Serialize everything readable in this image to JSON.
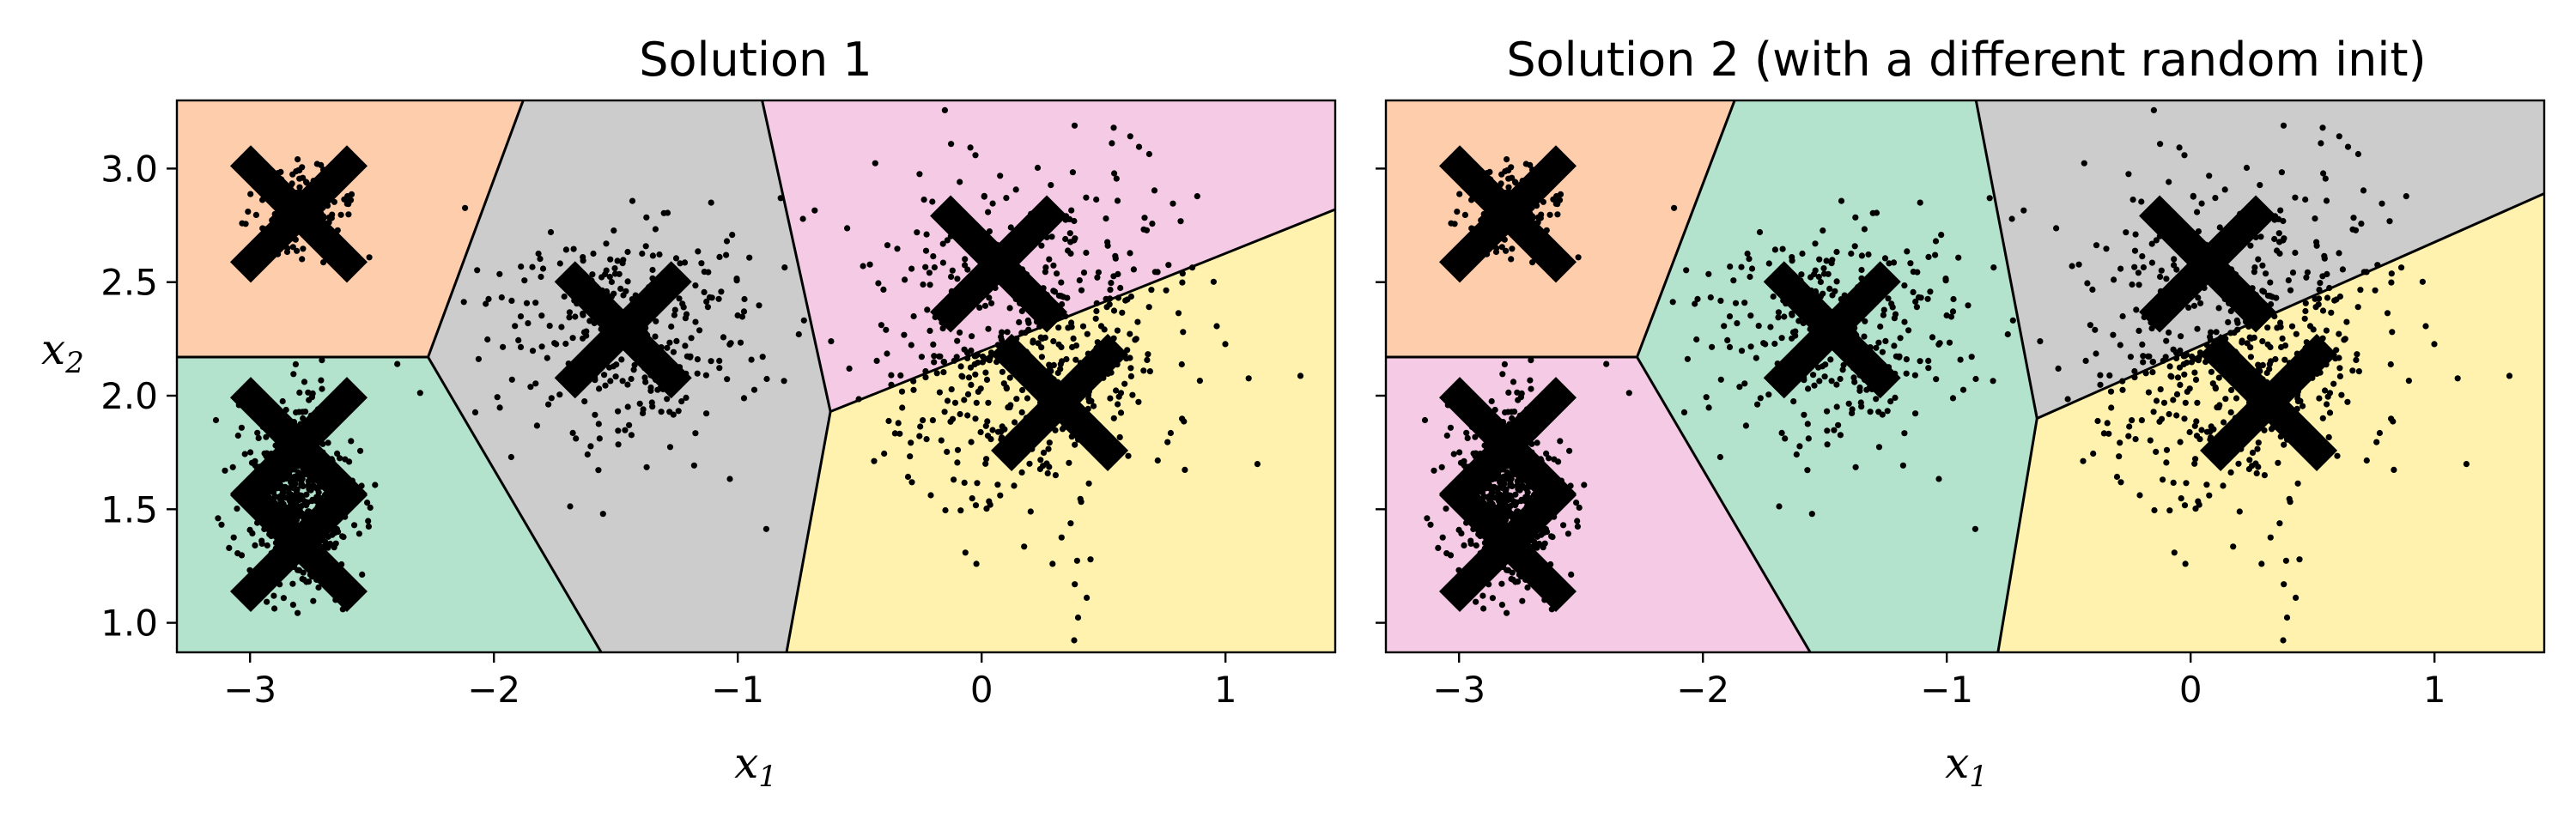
{
  "colors": {
    "region_orange": "#fdcdac",
    "region_green": "#b3e2cd",
    "region_gray": "#cccccc",
    "region_pink": "#f4cae4",
    "region_yellow": "#fff2ae",
    "points": "#000000",
    "centroid": "#000000",
    "boundary": "#000000"
  },
  "chart_data": [
    {
      "type": "scatter",
      "title": "Solution 1",
      "xlabel": "x1",
      "ylabel": "x2",
      "xlim": [
        -3.3,
        1.45
      ],
      "ylim": [
        0.87,
        3.3
      ],
      "x_ticks": [
        -3,
        -2,
        -1,
        0,
        1
      ],
      "x_tick_labels": [
        "−3",
        "−2",
        "−1",
        "0",
        "1"
      ],
      "y_ticks": [
        1.0,
        1.5,
        2.0,
        2.5,
        3.0
      ],
      "y_tick_labels": [
        "1.0",
        "1.5",
        "2.0",
        "2.5",
        "3.0"
      ],
      "grid": false,
      "centroids": [
        {
          "x": -2.8,
          "y": 2.8
        },
        {
          "x": -2.8,
          "y": 1.78
        },
        {
          "x": -2.8,
          "y": 1.35
        },
        {
          "x": -1.47,
          "y": 2.29
        },
        {
          "x": 0.07,
          "y": 2.58
        },
        {
          "x": 0.32,
          "y": 1.97
        }
      ],
      "clusters": [
        {
          "name": "top-left blob",
          "cx": -2.8,
          "cy": 2.8,
          "sx": 0.1,
          "sy": 0.1,
          "n": 180
        },
        {
          "name": "bottom-left blob",
          "cx": -2.8,
          "cy": 1.55,
          "sx": 0.11,
          "sy": 0.2,
          "n": 550
        },
        {
          "name": "center blob",
          "cx": -1.47,
          "cy": 2.29,
          "sx": 0.29,
          "sy": 0.29,
          "n": 320
        },
        {
          "name": "right blob",
          "cx": 0.2,
          "cy": 2.25,
          "sx": 0.32,
          "sy": 0.38,
          "n": 560
        }
      ],
      "regions": [
        {
          "color": "region_orange",
          "polygon": [
            [
              -3.3,
              3.3
            ],
            [
              -1.88,
              3.3
            ],
            [
              -2.27,
              2.17
            ],
            [
              -3.3,
              2.17
            ]
          ]
        },
        {
          "color": "region_green",
          "polygon": [
            [
              -3.3,
              2.17
            ],
            [
              -2.27,
              2.17
            ],
            [
              -1.56,
              0.87
            ],
            [
              -3.3,
              0.87
            ]
          ]
        },
        {
          "color": "region_gray",
          "polygon": [
            [
              -1.88,
              3.3
            ],
            [
              -0.9,
              3.3
            ],
            [
              -0.62,
              1.93
            ],
            [
              -0.8,
              0.87
            ],
            [
              -1.56,
              0.87
            ],
            [
              -2.27,
              2.17
            ]
          ]
        },
        {
          "color": "region_pink",
          "polygon": [
            [
              -0.9,
              3.3
            ],
            [
              1.45,
              3.3
            ],
            [
              1.45,
              2.82
            ],
            [
              -0.62,
              1.93
            ]
          ]
        },
        {
          "color": "region_yellow",
          "polygon": [
            [
              -0.62,
              1.93
            ],
            [
              1.45,
              2.82
            ],
            [
              1.45,
              0.87
            ],
            [
              -0.8,
              0.87
            ]
          ]
        }
      ],
      "boundaries": [
        [
          [
            -1.88,
            3.3
          ],
          [
            -2.27,
            2.17
          ]
        ],
        [
          [
            -3.3,
            2.17
          ],
          [
            -2.27,
            2.17
          ]
        ],
        [
          [
            -2.27,
            2.17
          ],
          [
            -1.56,
            0.87
          ]
        ],
        [
          [
            -0.9,
            3.3
          ],
          [
            -0.62,
            1.93
          ]
        ],
        [
          [
            -0.62,
            1.93
          ],
          [
            -0.8,
            0.87
          ]
        ],
        [
          [
            -0.62,
            1.93
          ],
          [
            1.45,
            2.82
          ]
        ]
      ]
    },
    {
      "type": "scatter",
      "title": "Solution 2 (with a different random init)",
      "xlabel": "x1",
      "ylabel": "",
      "xlim": [
        -3.3,
        1.45
      ],
      "ylim": [
        0.87,
        3.3
      ],
      "x_ticks": [
        -3,
        -2,
        -1,
        0,
        1
      ],
      "x_tick_labels": [
        "−3",
        "−2",
        "−1",
        "0",
        "1"
      ],
      "y_ticks": [
        1.0,
        1.5,
        2.0,
        2.5,
        3.0
      ],
      "y_tick_labels": [],
      "grid": false,
      "centroids": [
        {
          "x": -2.8,
          "y": 2.8
        },
        {
          "x": -2.8,
          "y": 1.78
        },
        {
          "x": -2.8,
          "y": 1.35
        },
        {
          "x": -1.47,
          "y": 2.29
        },
        {
          "x": 0.07,
          "y": 2.58
        },
        {
          "x": 0.32,
          "y": 1.97
        }
      ],
      "clusters": [
        {
          "name": "top-left blob",
          "cx": -2.8,
          "cy": 2.8,
          "sx": 0.1,
          "sy": 0.1,
          "n": 180
        },
        {
          "name": "bottom-left blob",
          "cx": -2.8,
          "cy": 1.55,
          "sx": 0.11,
          "sy": 0.2,
          "n": 550
        },
        {
          "name": "center blob",
          "cx": -1.47,
          "cy": 2.29,
          "sx": 0.29,
          "sy": 0.29,
          "n": 320
        },
        {
          "name": "right blob",
          "cx": 0.2,
          "cy": 2.25,
          "sx": 0.32,
          "sy": 0.38,
          "n": 560
        }
      ],
      "regions": [
        {
          "color": "region_orange",
          "polygon": [
            [
              -3.3,
              3.3
            ],
            [
              -1.87,
              3.3
            ],
            [
              -2.27,
              2.17
            ],
            [
              -3.3,
              2.17
            ]
          ]
        },
        {
          "color": "region_pink",
          "polygon": [
            [
              -3.3,
              2.17
            ],
            [
              -2.27,
              2.17
            ],
            [
              -1.56,
              0.87
            ],
            [
              -3.3,
              0.87
            ]
          ]
        },
        {
          "color": "region_green",
          "polygon": [
            [
              -1.87,
              3.3
            ],
            [
              -0.88,
              3.3
            ],
            [
              -0.63,
              1.9
            ],
            [
              -0.79,
              0.87
            ],
            [
              -1.56,
              0.87
            ],
            [
              -2.27,
              2.17
            ]
          ]
        },
        {
          "color": "region_gray",
          "polygon": [
            [
              -0.88,
              3.3
            ],
            [
              1.45,
              3.3
            ],
            [
              1.45,
              2.89
            ],
            [
              -0.63,
              1.9
            ]
          ]
        },
        {
          "color": "region_yellow",
          "polygon": [
            [
              -0.63,
              1.9
            ],
            [
              1.45,
              2.89
            ],
            [
              1.45,
              0.87
            ],
            [
              -0.79,
              0.87
            ]
          ]
        }
      ],
      "boundaries": [
        [
          [
            -1.87,
            3.3
          ],
          [
            -2.27,
            2.17
          ]
        ],
        [
          [
            -3.3,
            2.17
          ],
          [
            -2.27,
            2.17
          ]
        ],
        [
          [
            -2.27,
            2.17
          ],
          [
            -1.56,
            0.87
          ]
        ],
        [
          [
            -0.88,
            3.3
          ],
          [
            -0.63,
            1.9
          ]
        ],
        [
          [
            -0.63,
            1.9
          ],
          [
            -0.79,
            0.87
          ]
        ],
        [
          [
            -0.63,
            1.9
          ],
          [
            1.45,
            2.89
          ]
        ]
      ]
    }
  ]
}
